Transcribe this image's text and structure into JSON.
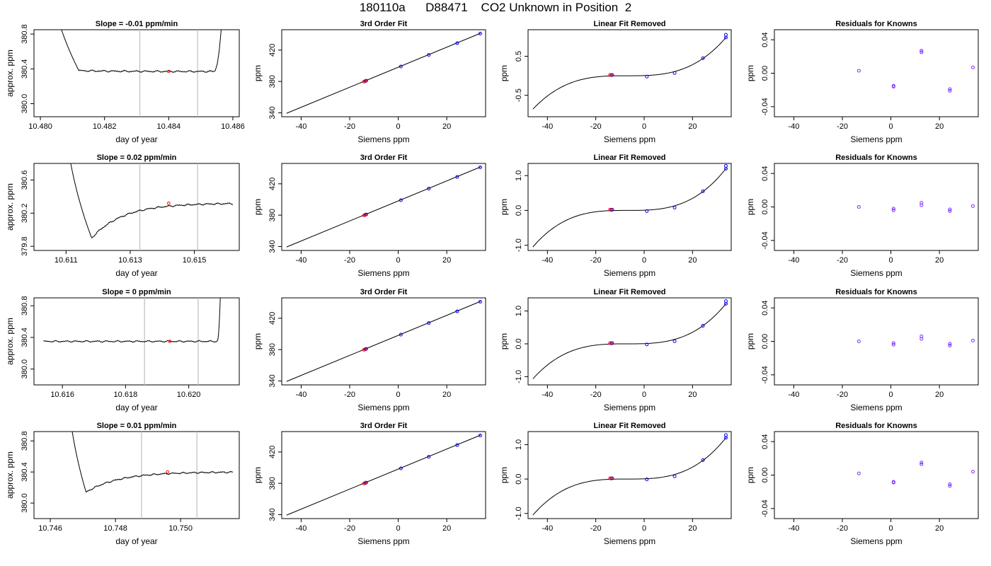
{
  "title": "180110a      D88471    CO2 Unknown in Position  2",
  "colors": {
    "line": "#000000",
    "frame": "#000000",
    "known_point": "#0000ff",
    "unknown_point": "#ff0000",
    "residual_point": "#7b2cff",
    "window_line": "#bfbfbf"
  },
  "chart_data": [
    {
      "type": "line",
      "title": "Slope =  -0.01  ppm/min",
      "xlabel": "day of year",
      "ylabel": "approx. ppm",
      "xlim": [
        10.4798,
        10.4862
      ],
      "ylim": [
        379.85,
        380.85
      ],
      "xticks": [
        10.48,
        10.482,
        10.484,
        10.486
      ],
      "xtick_labels": [
        "10.480",
        "10.482",
        "10.484",
        "10.486"
      ],
      "yticks": [
        380.0,
        380.4,
        380.8
      ],
      "ytick_labels": [
        "380.0",
        "380.4",
        "380.8"
      ],
      "x_start": 10.48,
      "x_end": 10.4859,
      "window": [
        10.4831,
        10.4849
      ],
      "marker_x": 10.484,
      "profile": {
        "drop_at": 10.481,
        "min_at": 10.4812,
        "min_value": 380.38,
        "settle": 380.37,
        "rise_at": 10.4854
      }
    },
    {
      "type": "scatter+line",
      "title": "3rd Order Fit",
      "xlabel": "Siemens ppm",
      "ylabel": "ppm",
      "xlim": [
        -48,
        36
      ],
      "ylim": [
        335,
        446
      ],
      "xticks": [
        -40,
        -20,
        0,
        20
      ],
      "xtick_labels": [
        "-40",
        "-20",
        "0",
        "20"
      ],
      "yticks": [
        340,
        380,
        420
      ],
      "ytick_labels": [
        "340",
        "380",
        "420"
      ],
      "line": {
        "x": [
          -46,
          34
        ],
        "y": [
          339.4,
          441.6
        ]
      },
      "knowns": {
        "x": [
          -13.2,
          1.1,
          12.6,
          24.3,
          33.8
        ],
        "y": [
          380.9,
          399.1,
          413.9,
          428.8,
          441.0
        ]
      },
      "unknowns": {
        "x": [
          -14.1,
          -13.6
        ],
        "y": [
          379.8,
          380.4
        ]
      }
    },
    {
      "type": "scatter+curve",
      "title": "Linear Fit Removed",
      "xlabel": "Siemens ppm",
      "ylabel": "ppm",
      "xlim": [
        -48,
        36
      ],
      "ylim": [
        -1.05,
        1.18
      ],
      "xticks": [
        -40,
        -20,
        0,
        20
      ],
      "xtick_labels": [
        "-40",
        "-20",
        "0",
        "20"
      ],
      "yticks": [
        -0.5,
        0.5
      ],
      "ytick_labels": [
        "-0.5",
        "0.5"
      ],
      "knowns": {
        "x": [
          -13.2,
          1.1,
          12.6,
          24.3,
          33.8,
          33.8
        ],
        "y": [
          0.02,
          -0.02,
          0.07,
          0.45,
          0.98,
          1.05
        ]
      },
      "unknowns": {
        "x": [
          -14.1,
          -13.6
        ],
        "y": [
          0.02,
          0.02
        ]
      }
    },
    {
      "type": "scatter",
      "title": "Residuals for Knowns",
      "xlabel": "Siemens ppm",
      "ylabel": "ppm",
      "xlim": [
        -48,
        36
      ],
      "ylim": [
        -0.052,
        0.052
      ],
      "xticks": [
        -40,
        -20,
        0,
        20
      ],
      "xtick_labels": [
        "-40",
        "-20",
        "0",
        "20"
      ],
      "yticks": [
        -0.04,
        0.0,
        0.04
      ],
      "ytick_labels": [
        "-0.04",
        "0.00",
        "0.04"
      ],
      "points": {
        "x": [
          -13.2,
          1.1,
          1.1,
          12.6,
          12.6,
          24.3,
          24.3,
          33.8
        ],
        "y": [
          0.003,
          -0.015,
          -0.016,
          0.027,
          0.025,
          -0.019,
          -0.021,
          0.007
        ]
      }
    },
    {
      "type": "line",
      "title": "Slope =  0.02  ppm/min",
      "xlabel": "day of year",
      "ylabel": "approx. ppm",
      "xlim": [
        10.61,
        10.6164
      ],
      "ylim": [
        379.75,
        380.8
      ],
      "xticks": [
        10.611,
        10.613,
        10.615
      ],
      "xtick_labels": [
        "10.611",
        "10.613",
        "10.615"
      ],
      "yticks": [
        379.8,
        380.2,
        380.6
      ],
      "ytick_labels": [
        "379.8",
        "380.2",
        "380.6"
      ],
      "x_start": 10.6108,
      "x_end": 10.6162,
      "window": [
        10.6133,
        10.6151
      ],
      "marker_x": 10.6142,
      "profile": {
        "drop_at": 10.6109,
        "min_at": 10.6118,
        "min_value": 379.9,
        "settle": 380.32,
        "rise_at": null
      }
    },
    {
      "type": "scatter+line",
      "title": "3rd Order Fit",
      "xlabel": "Siemens ppm",
      "ylabel": "ppm",
      "xlim": [
        -48,
        36
      ],
      "ylim": [
        335,
        446
      ],
      "xticks": [
        -40,
        -20,
        0,
        20
      ],
      "xtick_labels": [
        "-40",
        "-20",
        "0",
        "20"
      ],
      "yticks": [
        340,
        380,
        420
      ],
      "ytick_labels": [
        "340",
        "380",
        "420"
      ],
      "line": {
        "x": [
          -46,
          34
        ],
        "y": [
          339.4,
          441.6
        ]
      },
      "knowns": {
        "x": [
          -13.2,
          1.1,
          12.6,
          24.3,
          33.8
        ],
        "y": [
          380.9,
          399.1,
          413.9,
          428.8,
          441.0
        ]
      },
      "unknowns": {
        "x": [
          -14.1,
          -13.6
        ],
        "y": [
          379.8,
          380.4
        ]
      }
    },
    {
      "type": "scatter+curve",
      "title": "Linear Fit Removed",
      "xlabel": "Siemens ppm",
      "ylabel": "ppm",
      "xlim": [
        -48,
        36
      ],
      "ylim": [
        -1.15,
        1.35
      ],
      "xticks": [
        -40,
        -20,
        0,
        20
      ],
      "xtick_labels": [
        "-40",
        "-20",
        "0",
        "20"
      ],
      "yticks": [
        -1.0,
        0.0,
        1.0
      ],
      "ytick_labels": [
        "-1.0",
        "0.0",
        "1.0"
      ],
      "knowns": {
        "x": [
          -13.2,
          1.1,
          12.6,
          24.3,
          33.8,
          33.8
        ],
        "y": [
          0.02,
          -0.02,
          0.08,
          0.55,
          1.2,
          1.28
        ]
      },
      "unknowns": {
        "x": [
          -14.1,
          -13.6
        ],
        "y": [
          0.02,
          0.02
        ]
      }
    },
    {
      "type": "scatter",
      "title": "Residuals for Knowns",
      "xlabel": "Siemens ppm",
      "ylabel": "ppm",
      "xlim": [
        -48,
        36
      ],
      "ylim": [
        -0.052,
        0.052
      ],
      "xticks": [
        -40,
        -20,
        0,
        20
      ],
      "xtick_labels": [
        "-40",
        "-20",
        "0",
        "20"
      ],
      "yticks": [
        -0.04,
        0.0,
        0.04
      ],
      "ytick_labels": [
        "-0.04",
        "0.00",
        "0.04"
      ],
      "points": {
        "x": [
          -13.2,
          1.1,
          1.1,
          12.6,
          12.6,
          24.3,
          24.3,
          33.8
        ],
        "y": [
          0.0,
          -0.002,
          -0.004,
          0.005,
          0.002,
          -0.003,
          -0.005,
          0.001
        ]
      }
    },
    {
      "type": "line",
      "title": "Slope =  0  ppm/min",
      "xlabel": "day of year",
      "ylabel": "approx. ppm",
      "xlim": [
        10.6151,
        10.6216
      ],
      "ylim": [
        379.8,
        380.9
      ],
      "xticks": [
        10.616,
        10.618,
        10.62
      ],
      "xtick_labels": [
        "10.616",
        "10.618",
        "10.620"
      ],
      "yticks": [
        380.0,
        380.4,
        380.8
      ],
      "ytick_labels": [
        "380.0",
        "380.4",
        "380.8"
      ],
      "x_start": 10.6154,
      "x_end": 10.6211,
      "window": [
        10.6186,
        10.6203
      ],
      "marker_x": 10.6194,
      "profile": {
        "drop_at": null,
        "min_at": null,
        "min_value": null,
        "settle": 380.35,
        "rise_at": 10.6209
      }
    },
    {
      "type": "scatter+line",
      "title": "3rd Order Fit",
      "xlabel": "Siemens ppm",
      "ylabel": "ppm",
      "xlim": [
        -48,
        36
      ],
      "ylim": [
        335,
        446
      ],
      "xticks": [
        -40,
        -20,
        0,
        20
      ],
      "xtick_labels": [
        "-40",
        "-20",
        "0",
        "20"
      ],
      "yticks": [
        340,
        380,
        420
      ],
      "ytick_labels": [
        "340",
        "380",
        "420"
      ],
      "line": {
        "x": [
          -46,
          34
        ],
        "y": [
          339.4,
          441.6
        ]
      },
      "knowns": {
        "x": [
          -13.2,
          1.1,
          12.6,
          24.3,
          33.8
        ],
        "y": [
          380.9,
          399.1,
          413.9,
          428.8,
          441.0
        ]
      },
      "unknowns": {
        "x": [
          -14.1,
          -13.6
        ],
        "y": [
          379.8,
          380.4
        ]
      }
    },
    {
      "type": "scatter+curve",
      "title": "Linear Fit Removed",
      "xlabel": "Siemens ppm",
      "ylabel": "ppm",
      "xlim": [
        -48,
        36
      ],
      "ylim": [
        -1.25,
        1.4
      ],
      "xticks": [
        -40,
        -20,
        0,
        20
      ],
      "xtick_labels": [
        "-40",
        "-20",
        "0",
        "20"
      ],
      "yticks": [
        -1.0,
        0.0,
        1.0
      ],
      "ytick_labels": [
        "-1.0",
        "0.0",
        "1.0"
      ],
      "knowns": {
        "x": [
          -13.2,
          1.1,
          12.6,
          24.3,
          33.8,
          33.8
        ],
        "y": [
          0.02,
          -0.02,
          0.08,
          0.55,
          1.22,
          1.3
        ]
      },
      "unknowns": {
        "x": [
          -14.1,
          -13.6
        ],
        "y": [
          0.02,
          0.02
        ]
      }
    },
    {
      "type": "scatter",
      "title": "Residuals for Knowns",
      "xlabel": "Siemens ppm",
      "ylabel": "ppm",
      "xlim": [
        -48,
        36
      ],
      "ylim": [
        -0.052,
        0.052
      ],
      "xticks": [
        -40,
        -20,
        0,
        20
      ],
      "xtick_labels": [
        "-40",
        "-20",
        "0",
        "20"
      ],
      "yticks": [
        -0.04,
        0.0,
        0.04
      ],
      "ytick_labels": [
        "-0.04",
        "0.00",
        "0.04"
      ],
      "points": {
        "x": [
          -13.2,
          1.1,
          1.1,
          12.6,
          12.6,
          24.3,
          24.3,
          33.8
        ],
        "y": [
          0.0,
          -0.002,
          -0.004,
          0.006,
          0.003,
          -0.003,
          -0.005,
          0.001
        ]
      }
    },
    {
      "type": "line",
      "title": "Slope =  0.01  ppm/min",
      "xlabel": "day of year",
      "ylabel": "approx. ppm",
      "xlim": [
        10.7455,
        10.7518
      ],
      "ylim": [
        379.8,
        380.92
      ],
      "xticks": [
        10.746,
        10.748,
        10.75
      ],
      "xtick_labels": [
        "10.746",
        "10.748",
        "10.750"
      ],
      "yticks": [
        380.0,
        380.4,
        380.8
      ],
      "ytick_labels": [
        "380.0",
        "380.4",
        "380.8"
      ],
      "x_start": 10.7464,
      "x_end": 10.7516,
      "window": [
        10.7488,
        10.7505
      ],
      "marker_x": 10.7496,
      "profile": {
        "drop_at": 10.7465,
        "min_at": 10.7471,
        "min_value": 380.14,
        "settle": 380.4,
        "rise_at": null
      }
    },
    {
      "type": "scatter+line",
      "title": "3rd Order Fit",
      "xlabel": "Siemens ppm",
      "ylabel": "ppm",
      "xlim": [
        -48,
        36
      ],
      "ylim": [
        335,
        446
      ],
      "xticks": [
        -40,
        -20,
        0,
        20
      ],
      "xtick_labels": [
        "-40",
        "-20",
        "0",
        "20"
      ],
      "yticks": [
        340,
        380,
        420
      ],
      "ytick_labels": [
        "340",
        "380",
        "420"
      ],
      "line": {
        "x": [
          -46,
          34
        ],
        "y": [
          339.4,
          441.6
        ]
      },
      "knowns": {
        "x": [
          -13.2,
          1.1,
          12.6,
          24.3,
          33.8
        ],
        "y": [
          380.9,
          399.1,
          413.9,
          428.8,
          441.0
        ]
      },
      "unknowns": {
        "x": [
          -14.1,
          -13.6
        ],
        "y": [
          379.8,
          380.4
        ]
      }
    },
    {
      "type": "scatter+curve",
      "title": "Linear Fit Removed",
      "xlabel": "Siemens ppm",
      "ylabel": "ppm",
      "xlim": [
        -48,
        36
      ],
      "ylim": [
        -1.15,
        1.38
      ],
      "xticks": [
        -40,
        -20,
        0,
        20
      ],
      "xtick_labels": [
        "-40",
        "-20",
        "0",
        "20"
      ],
      "yticks": [
        -1.0,
        0.0,
        1.0
      ],
      "ytick_labels": [
        "-1.0",
        "0.0",
        "1.0"
      ],
      "knowns": {
        "x": [
          -13.2,
          1.1,
          12.6,
          24.3,
          33.8,
          33.8
        ],
        "y": [
          0.02,
          -0.01,
          0.08,
          0.55,
          1.2,
          1.28
        ]
      },
      "unknowns": {
        "x": [
          -14.1,
          -13.6
        ],
        "y": [
          0.02,
          0.02
        ]
      }
    },
    {
      "type": "scatter",
      "title": "Residuals for Knowns",
      "xlabel": "Siemens ppm",
      "ylabel": "ppm",
      "xlim": [
        -48,
        36
      ],
      "ylim": [
        -0.052,
        0.052
      ],
      "xticks": [
        -40,
        -20,
        0,
        20
      ],
      "xtick_labels": [
        "-40",
        "-20",
        "0",
        "20"
      ],
      "yticks": [
        -0.04,
        0.0,
        0.04
      ],
      "ytick_labels": [
        "-0.04",
        "0.00",
        "0.04"
      ],
      "points": {
        "x": [
          -13.2,
          1.1,
          1.1,
          12.6,
          12.6,
          24.3,
          24.3,
          33.8
        ],
        "y": [
          0.002,
          -0.008,
          -0.009,
          0.015,
          0.013,
          -0.011,
          -0.013,
          0.004
        ]
      }
    }
  ]
}
